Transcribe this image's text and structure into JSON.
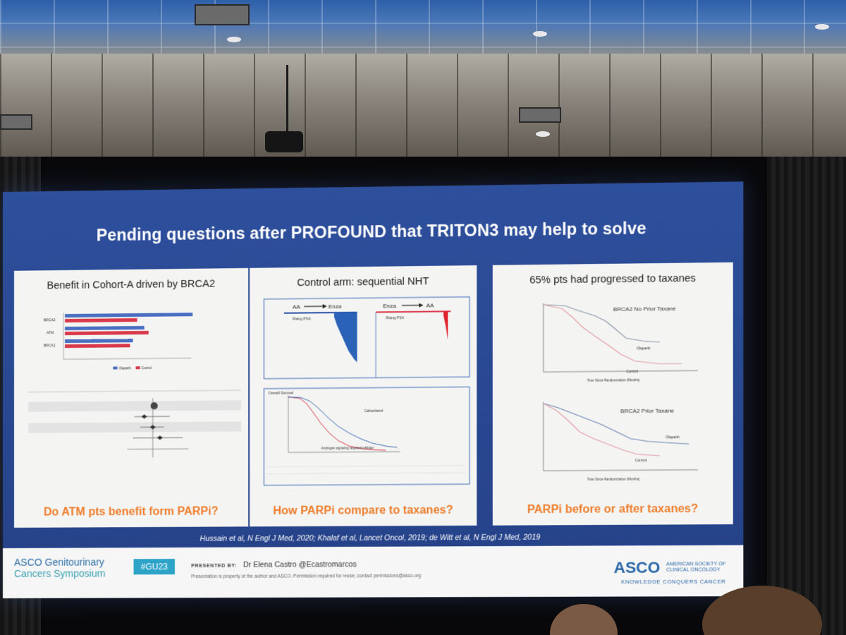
{
  "slide": {
    "title": "Pending questions after PROFOUND that TRITON3 may help to solve",
    "panels": [
      {
        "title": "Benefit in Cohort-A driven by BRCA2",
        "question": "Do ATM pts benefit form PARPi?",
        "chart_labels": {
          "gene1": "BRCA2",
          "gene2": "ATM",
          "gene3": "BRCA1",
          "legend1": "Olaparib",
          "legend2": "Control"
        }
      },
      {
        "title": "Control arm: sequential NHT",
        "question": "How PARPi compare to taxanes?",
        "chart_labels": {
          "seq1_from": "AA",
          "seq1_to": "Enza",
          "seq2_from": "Enza",
          "seq2_to": "AA",
          "rising": "Rising PSA",
          "os": "Overall Survival",
          "arm1": "Cabazitaxel",
          "arm2": "Androgen signaling targeted inhibitor"
        }
      },
      {
        "title": "65% pts had progressed to taxanes",
        "question": "PARPi before or after taxanes?",
        "chart_labels": {
          "top": "BRCA2 No Prior Taxane",
          "bottom": "BRCA2 Prior Taxane",
          "olaparib": "Olaparib",
          "control": "Control",
          "xlabel": "Time Since Randomization (Months)"
        }
      }
    ],
    "references": "Hussain et al, N Engl J Med, 2020; Khalaf et al, Lancet Oncol, 2019; de Witt et al, N Engl J Med, 2019"
  },
  "footer": {
    "logo_line1": "ASCO Genitourinary",
    "logo_line2": "Cancers Symposium",
    "hashtag": "#GU23",
    "presented_label": "PRESENTED BY:",
    "presenter": "Dr Elena Castro  @Ecastromarcos",
    "disclaimer": "Presentation is property of the author and ASCO. Permission required for reuse; contact permissions@asco.org",
    "asco": "ASCO",
    "asco_sub1": "AMERICAN SOCIETY OF",
    "asco_sub2": "CLINICAL ONCOLOGY",
    "asco_tagline": "KNOWLEDGE CONQUERS CANCER"
  },
  "colors": {
    "slide_blue": "#2e4f9c",
    "question_orange": "#ef7d2c",
    "olaparib_blue": "#4a6fc2",
    "control_red": "#d9394a"
  }
}
